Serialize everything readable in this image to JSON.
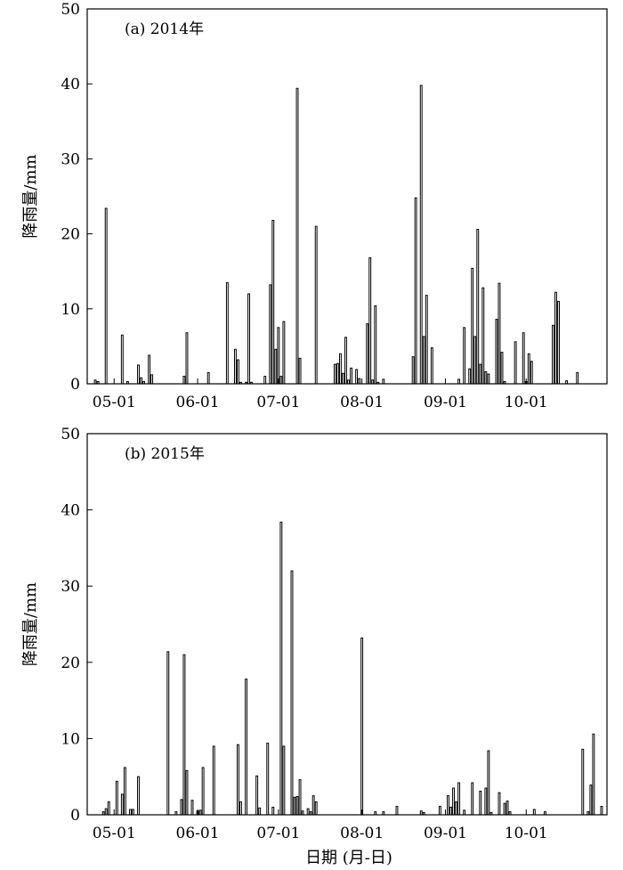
{
  "xlabel": "日期 (月-日)",
  "chart_data": [
    {
      "type": "bar",
      "title": "(a) 2014年",
      "xlabel": "",
      "ylabel": "降雨量/mm",
      "ylim": [
        0,
        50
      ],
      "yticks": [
        0,
        10,
        20,
        30,
        40,
        50
      ],
      "xlim": [
        "2014-04-21",
        "2014-10-31"
      ],
      "xtick_labels": [
        "05-01",
        "06-01",
        "07-01",
        "08-01",
        "09-01",
        "10-01"
      ],
      "grid": false,
      "legend": "none",
      "x": [
        "2014-04-24",
        "2014-04-25",
        "2014-04-28",
        "2014-05-04",
        "2014-05-06",
        "2014-05-10",
        "2014-05-11",
        "2014-05-12",
        "2014-05-14",
        "2014-05-15",
        "2014-05-27",
        "2014-05-28",
        "2014-06-05",
        "2014-06-12",
        "2014-06-15",
        "2014-06-16",
        "2014-06-17",
        "2014-06-19",
        "2014-06-20",
        "2014-06-21",
        "2014-06-26",
        "2014-06-28",
        "2014-06-29",
        "2014-06-30",
        "2014-07-01",
        "2014-07-02",
        "2014-07-03",
        "2014-07-08",
        "2014-07-09",
        "2014-07-15",
        "2014-07-22",
        "2014-07-23",
        "2014-07-24",
        "2014-07-25",
        "2014-07-26",
        "2014-07-27",
        "2014-07-28",
        "2014-07-30",
        "2014-07-31",
        "2014-08-03",
        "2014-08-04",
        "2014-08-05",
        "2014-08-06",
        "2014-08-07",
        "2014-08-09",
        "2014-08-20",
        "2014-08-21",
        "2014-08-23",
        "2014-08-24",
        "2014-08-25",
        "2014-08-27",
        "2014-09-06",
        "2014-09-08",
        "2014-09-10",
        "2014-09-11",
        "2014-09-12",
        "2014-09-13",
        "2014-09-14",
        "2014-09-15",
        "2014-09-16",
        "2014-09-17",
        "2014-09-20",
        "2014-09-21",
        "2014-09-22",
        "2014-09-23",
        "2014-09-27",
        "2014-09-30",
        "2014-10-01",
        "2014-10-02",
        "2014-10-03",
        "2014-10-11",
        "2014-10-12",
        "2014-10-13",
        "2014-10-16",
        "2014-10-20"
      ],
      "values": [
        0.5,
        0.3,
        23.4,
        6.5,
        0.3,
        2.5,
        0.8,
        0.3,
        3.8,
        1.2,
        1.0,
        6.8,
        1.5,
        13.5,
        4.6,
        3.2,
        0.2,
        0.2,
        12.0,
        0.2,
        1.0,
        13.2,
        21.8,
        4.6,
        7.5,
        1.0,
        8.3,
        39.4,
        3.4,
        21.0,
        2.6,
        2.7,
        4.0,
        1.4,
        6.2,
        0.5,
        2.1,
        1.9,
        0.7,
        8.0,
        16.8,
        0.5,
        10.4,
        0.2,
        0.6,
        3.6,
        24.8,
        39.8,
        6.3,
        11.8,
        4.8,
        0.6,
        7.5,
        2.0,
        15.4,
        6.3,
        20.6,
        2.6,
        12.8,
        1.6,
        1.3,
        8.6,
        13.4,
        4.2,
        0.3,
        5.6,
        6.8,
        0.3,
        4.0,
        3.0,
        7.8,
        12.2,
        11.0,
        0.4,
        1.5
      ]
    },
    {
      "type": "bar",
      "title": "(b) 2015年",
      "xlabel": "日期 (月-日)",
      "ylabel": "降雨量/mm",
      "ylim": [
        0,
        50
      ],
      "yticks": [
        0,
        10,
        20,
        30,
        40,
        50
      ],
      "xlim": [
        "2015-04-21",
        "2015-10-31"
      ],
      "xtick_labels": [
        "05-01",
        "06-01",
        "07-01",
        "08-01",
        "09-01",
        "10-01"
      ],
      "grid": false,
      "legend": "none",
      "x": [
        "2015-04-27",
        "2015-04-28",
        "2015-04-29",
        "2015-05-02",
        "2015-05-04",
        "2015-05-05",
        "2015-05-07",
        "2015-05-08",
        "2015-05-10",
        "2015-05-21",
        "2015-05-24",
        "2015-05-26",
        "2015-05-27",
        "2015-05-28",
        "2015-05-30",
        "2015-06-01",
        "2015-06-02",
        "2015-06-03",
        "2015-06-07",
        "2015-06-16",
        "2015-06-17",
        "2015-06-19",
        "2015-06-23",
        "2015-06-24",
        "2015-06-27",
        "2015-06-29",
        "2015-07-02",
        "2015-07-03",
        "2015-07-06",
        "2015-07-07",
        "2015-07-08",
        "2015-07-09",
        "2015-07-10",
        "2015-07-12",
        "2015-07-13",
        "2015-07-14",
        "2015-07-15",
        "2015-08-01",
        "2015-08-06",
        "2015-08-09",
        "2015-08-14",
        "2015-08-23",
        "2015-08-24",
        "2015-08-30",
        "2015-09-02",
        "2015-09-03",
        "2015-09-04",
        "2015-09-05",
        "2015-09-06",
        "2015-09-08",
        "2015-09-11",
        "2015-09-14",
        "2015-09-16",
        "2015-09-17",
        "2015-09-18",
        "2015-09-21",
        "2015-09-23",
        "2015-09-24",
        "2015-09-25",
        "2015-10-04",
        "2015-10-08",
        "2015-10-22",
        "2015-10-24",
        "2015-10-25",
        "2015-10-26",
        "2015-10-29"
      ],
      "values": [
        0.4,
        0.8,
        1.7,
        4.4,
        2.7,
        6.2,
        0.7,
        0.7,
        5.0,
        21.4,
        0.4,
        2.0,
        21.0,
        5.8,
        1.9,
        0.5,
        0.6,
        6.2,
        9.0,
        9.2,
        1.7,
        17.8,
        5.1,
        0.9,
        9.4,
        1.0,
        38.4,
        9.0,
        32.0,
        2.3,
        2.4,
        4.6,
        0.5,
        0.8,
        0.4,
        2.5,
        1.7,
        23.2,
        0.4,
        0.4,
        1.1,
        0.5,
        0.3,
        1.1,
        2.5,
        1.0,
        3.5,
        1.7,
        4.2,
        0.6,
        4.2,
        3.1,
        3.5,
        8.4,
        0.3,
        2.9,
        1.5,
        1.8,
        0.4,
        0.7,
        0.4,
        8.6,
        0.4,
        3.9,
        10.6,
        1.1
      ]
    }
  ]
}
